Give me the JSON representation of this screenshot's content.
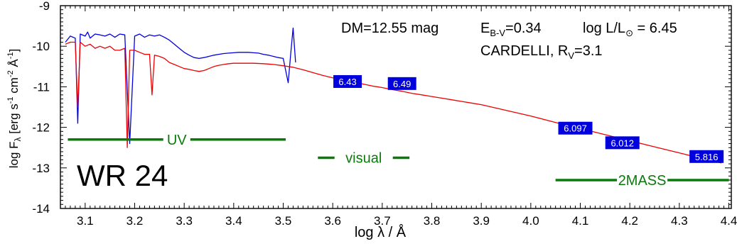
{
  "chart_data": {
    "type": "line",
    "xlabel": "log λ / Å",
    "ylabel": "log F_λ [erg s^-1 cm^-2 Å^-1]",
    "xlim": [
      3.05,
      4.405
    ],
    "ylim": [
      -14,
      -9
    ],
    "x_ticks": [
      "3.1",
      "3.2",
      "3.3",
      "3.4",
      "3.5",
      "3.6",
      "3.7",
      "3.8",
      "3.9",
      "4.0",
      "4.1",
      "4.2",
      "4.3",
      "4.4"
    ],
    "y_ticks": [
      "-9",
      "-10",
      "-11",
      "-12",
      "-13",
      "-14"
    ],
    "annotations": {
      "dm": "DM=12.55 mag",
      "ebv": "E",
      "ebv_sub": "B-V",
      "ebv_val": "=0.34",
      "logl": "log L/L",
      "logl_sym": "⊙",
      "logl_val": " = 6.45",
      "law": "CARDELLI, R",
      "law_sub": "V",
      "law_val": "=3.1",
      "star": "WR 24"
    },
    "bands": [
      {
        "label": "UV",
        "x_start": 3.065,
        "x_end": 3.505,
        "y": -12.3
      },
      {
        "label": "visual",
        "x_start": 3.57,
        "x_end": 3.755,
        "y": -12.75
      },
      {
        "label": "2MASS",
        "x_start": 4.05,
        "x_end": 4.4,
        "y": -13.3
      }
    ],
    "photometry": [
      {
        "x": 3.63,
        "y": -10.87,
        "label": "6.43"
      },
      {
        "x": 3.74,
        "y": -10.92,
        "label": "6.49"
      },
      {
        "x": 4.09,
        "y": -12.02,
        "label": "6.097"
      },
      {
        "x": 4.185,
        "y": -12.38,
        "label": "6.012"
      },
      {
        "x": 4.355,
        "y": -12.72,
        "label": "5.816"
      }
    ],
    "series": [
      {
        "color": "#0000dd",
        "x": [
          3.06,
          3.07,
          3.08,
          3.085,
          3.09,
          3.1,
          3.105,
          3.11,
          3.12,
          3.13,
          3.14,
          3.15,
          3.16,
          3.17,
          3.18,
          3.19,
          3.2,
          3.21,
          3.22,
          3.23,
          3.24,
          3.25,
          3.26,
          3.27,
          3.28,
          3.29,
          3.3,
          3.31,
          3.32,
          3.33,
          3.34,
          3.35,
          3.36,
          3.37,
          3.38,
          3.39,
          3.4,
          3.41,
          3.42,
          3.43,
          3.44,
          3.45,
          3.46,
          3.47,
          3.48,
          3.49,
          3.5,
          3.51,
          3.515,
          3.52,
          3.525
        ],
        "y": [
          -9.9,
          -9.75,
          -9.8,
          -11.9,
          -9.7,
          -9.75,
          -9.65,
          -9.8,
          -9.7,
          -9.72,
          -9.75,
          -9.7,
          -9.78,
          -9.7,
          -9.72,
          -12.4,
          -9.75,
          -9.7,
          -9.78,
          -9.72,
          -9.75,
          -9.72,
          -9.78,
          -9.85,
          -9.95,
          -10.05,
          -10.15,
          -10.22,
          -10.28,
          -10.3,
          -10.28,
          -10.25,
          -10.22,
          -10.2,
          -10.18,
          -10.17,
          -10.16,
          -10.15,
          -10.15,
          -10.15,
          -10.16,
          -10.17,
          -10.2,
          -10.22,
          -10.25,
          -10.28,
          -10.3,
          -10.9,
          -10.2,
          -9.55,
          -10.4
        ]
      },
      {
        "color": "#ee0000",
        "x": [
          3.06,
          3.07,
          3.08,
          3.085,
          3.09,
          3.1,
          3.11,
          3.12,
          3.13,
          3.14,
          3.15,
          3.16,
          3.17,
          3.18,
          3.185,
          3.19,
          3.2,
          3.21,
          3.22,
          3.23,
          3.235,
          3.24,
          3.25,
          3.26,
          3.27,
          3.28,
          3.29,
          3.3,
          3.31,
          3.32,
          3.33,
          3.34,
          3.35,
          3.36,
          3.37,
          3.38,
          3.39,
          3.4,
          3.42,
          3.44,
          3.46,
          3.48,
          3.5,
          3.52,
          3.54,
          3.56,
          3.58,
          3.6,
          3.62,
          3.64,
          3.66,
          3.68,
          3.7,
          3.72,
          3.74,
          3.76,
          3.78,
          3.8,
          3.82,
          3.84,
          3.86,
          3.88,
          3.9,
          3.95,
          4.0,
          4.05,
          4.1,
          4.15,
          4.2,
          4.25,
          4.3,
          4.35,
          4.385
        ],
        "y": [
          -9.95,
          -9.9,
          -9.9,
          -11.5,
          -9.9,
          -10.0,
          -9.95,
          -10.05,
          -10.0,
          -10.05,
          -10.0,
          -10.1,
          -10.1,
          -10.05,
          -12.5,
          -10.1,
          -10.1,
          -10.15,
          -10.2,
          -10.2,
          -11.2,
          -10.22,
          -10.25,
          -10.3,
          -10.4,
          -10.45,
          -10.5,
          -10.55,
          -10.57,
          -10.6,
          -10.62,
          -10.6,
          -10.55,
          -10.5,
          -10.47,
          -10.45,
          -10.43,
          -10.42,
          -10.42,
          -10.42,
          -10.43,
          -10.45,
          -10.48,
          -10.52,
          -10.58,
          -10.65,
          -10.72,
          -10.78,
          -10.83,
          -10.88,
          -10.93,
          -10.98,
          -11.02,
          -11.07,
          -11.11,
          -11.16,
          -11.2,
          -11.24,
          -11.28,
          -11.32,
          -11.36,
          -11.4,
          -11.44,
          -11.58,
          -11.72,
          -11.88,
          -12.03,
          -12.18,
          -12.33,
          -12.48,
          -12.63,
          -12.78,
          -12.88
        ]
      }
    ]
  }
}
